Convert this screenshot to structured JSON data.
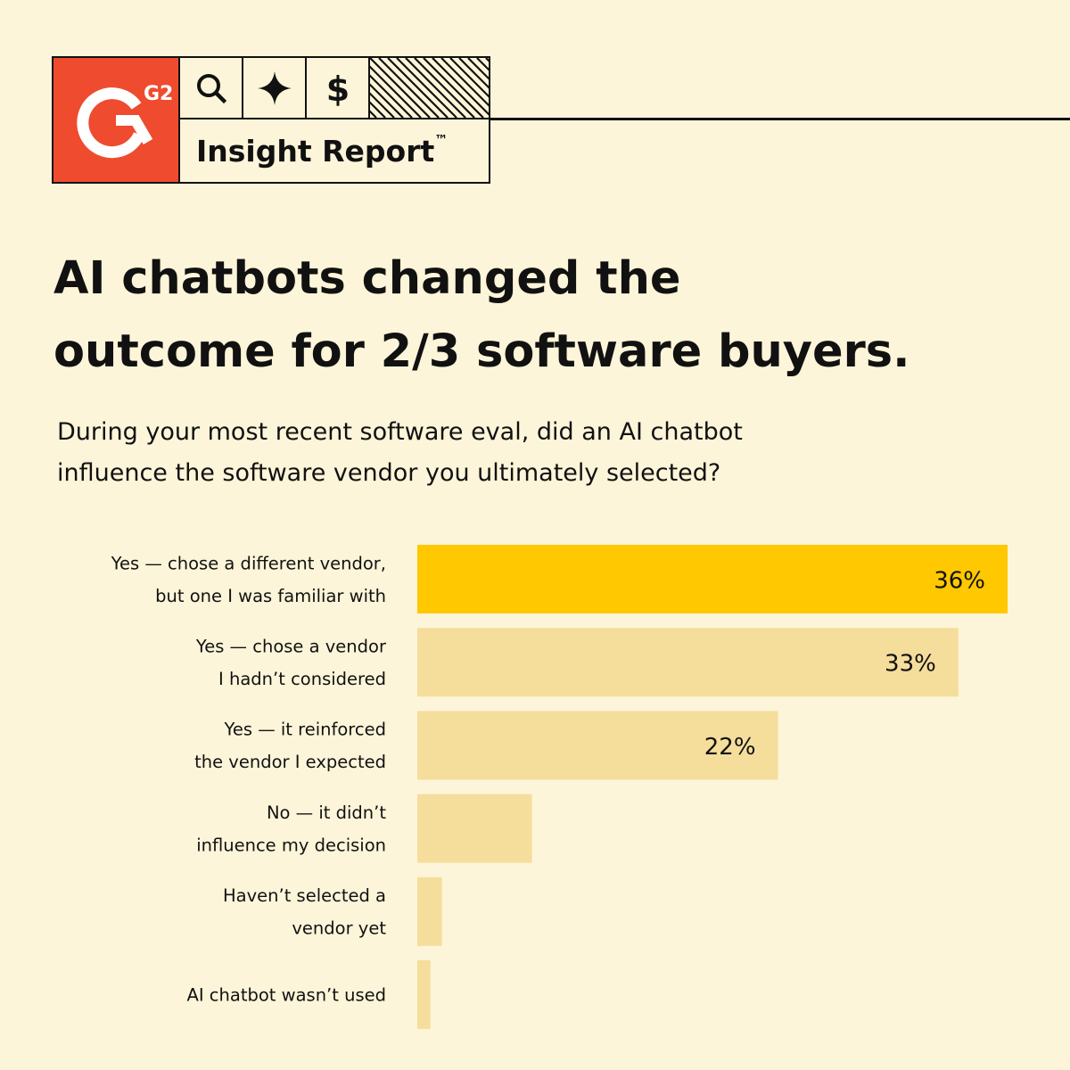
{
  "brand": {
    "logo_text": "G2",
    "report_name": "Insight Report",
    "trademark": "™",
    "icons": [
      "search-icon",
      "sparkle-icon",
      "dollar-icon"
    ],
    "colors": {
      "logo_bg": "#ef4b2f",
      "background": "#fdf5d9",
      "ink": "#111111"
    }
  },
  "headline": {
    "line1": "AI chatbots changed the",
    "line2": "outcome for 2/3 software buyers."
  },
  "question": {
    "line1": "During your most recent software eval, did an AI chatbot",
    "line2": "influence the software vendor you ultimately selected?"
  },
  "chart_data": {
    "type": "bar",
    "orientation": "horizontal",
    "categories": [
      [
        "Yes — chose a different vendor,",
        "but one I was familiar with"
      ],
      [
        "Yes — chose a vendor",
        "I hadn’t considered"
      ],
      [
        "Yes — it reinforced",
        "the vendor I expected"
      ],
      [
        "No — it didn’t",
        "influence my decision"
      ],
      [
        "Haven’t selected a",
        "vendor yet"
      ],
      [
        "AI chatbot wasn’t used"
      ]
    ],
    "values": [
      36,
      33,
      22,
      7,
      1.5,
      0.8
    ],
    "value_labels": [
      "36%",
      "33%",
      "22%",
      "",
      "",
      ""
    ],
    "unit": "%",
    "xlim": [
      0,
      36
    ],
    "highlight_index": 0,
    "colors": {
      "highlight": "#ffc800",
      "default": "#f5dd9c"
    },
    "grid": false,
    "legend": "none"
  }
}
